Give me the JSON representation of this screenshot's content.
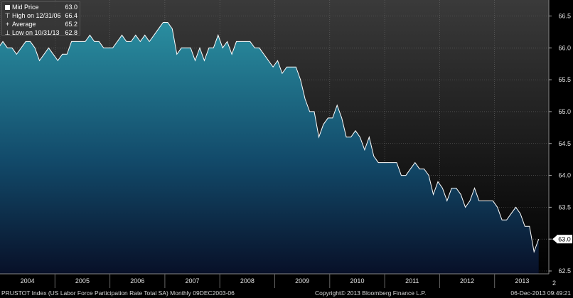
{
  "legend": {
    "mid_label": "Mid Price",
    "mid_value": "63.0",
    "high_label": "High on 12/31/06",
    "high_value": "66.4",
    "avg_label": "Average",
    "avg_value": "65.2",
    "low_label": "Low on 10/31/13",
    "low_value": "62.8"
  },
  "footer": {
    "left": "PRUSTOT Index (US Labor Force Participation Rate Total SA)  Monthly 09DEC2003-06",
    "center": "Copyright© 2013 Bloomberg Finance L.P.",
    "right": "06-Dec-2013 09:49:21"
  },
  "colors": {
    "area_top": "#2a8ea0",
    "area_bottom": "#081028",
    "background_top": "#3a3a3a",
    "background_bottom": "#000000",
    "line": "#ffffff"
  },
  "chart_data": {
    "type": "area",
    "start": "2003-12",
    "frequency": "monthly",
    "xlabels": [
      "2004",
      "2005",
      "2006",
      "2007",
      "2008",
      "2009",
      "2010",
      "2011",
      "2012",
      "2013"
    ],
    "yticks": [
      "62.5",
      "63.0",
      "63.5",
      "64.0",
      "64.5",
      "65.0",
      "65.5",
      "66.0",
      "66.5"
    ],
    "ylim": [
      62.5,
      66.6
    ],
    "last_value_label": "63.0",
    "right_edge_label": "2",
    "values": [
      66.0,
      66.1,
      66.0,
      66.0,
      65.9,
      66.0,
      66.1,
      66.1,
      66.0,
      65.8,
      65.9,
      66.0,
      65.9,
      65.8,
      65.9,
      65.9,
      66.1,
      66.1,
      66.1,
      66.1,
      66.2,
      66.1,
      66.1,
      66.0,
      66.0,
      66.0,
      66.1,
      66.2,
      66.1,
      66.1,
      66.2,
      66.1,
      66.2,
      66.1,
      66.2,
      66.3,
      66.4,
      66.4,
      66.3,
      65.9,
      66.0,
      66.0,
      66.0,
      65.8,
      66.0,
      65.8,
      66.0,
      66.0,
      66.2,
      66.0,
      66.1,
      65.9,
      66.1,
      66.1,
      66.1,
      66.1,
      66.0,
      66.0,
      65.9,
      65.8,
      65.7,
      65.8,
      65.6,
      65.7,
      65.7,
      65.7,
      65.5,
      65.2,
      65.0,
      65.0,
      64.6,
      64.8,
      64.9,
      64.9,
      65.1,
      64.9,
      64.6,
      64.6,
      64.7,
      64.6,
      64.4,
      64.6,
      64.3,
      64.2,
      64.2,
      64.2,
      64.2,
      64.2,
      64.0,
      64.0,
      64.1,
      64.2,
      64.1,
      64.1,
      64.0,
      63.7,
      63.9,
      63.8,
      63.6,
      63.8,
      63.8,
      63.7,
      63.5,
      63.6,
      63.8,
      63.6,
      63.6,
      63.6,
      63.6,
      63.5,
      63.3,
      63.3,
      63.4,
      63.5,
      63.4,
      63.2,
      63.2,
      62.8,
      63.0
    ]
  }
}
